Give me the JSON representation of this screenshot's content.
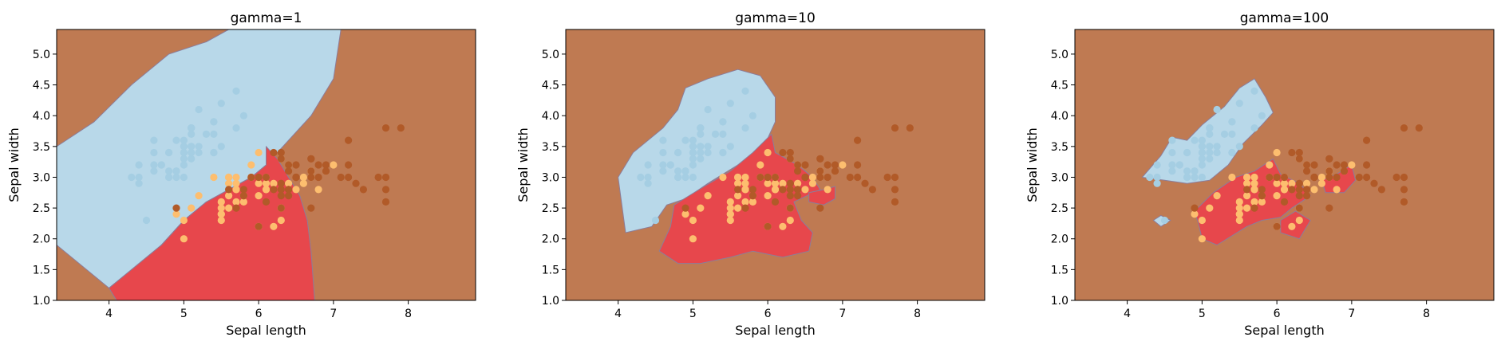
{
  "colors": {
    "background": "#bf7a52",
    "class0": "#b8d8e9",
    "class1": "#e7474c",
    "class0_point": "#a5cee3",
    "class1_point": "#fdbe6f",
    "class2_point": "#b15a28"
  },
  "chart_data": [
    {
      "type": "scatter",
      "title": "gamma=1",
      "xlabel": "Sepal length",
      "ylabel": "Sepal width",
      "xlim": [
        3.3,
        8.9
      ],
      "ylim": [
        1.0,
        5.4
      ],
      "xticks": [
        "4",
        "5",
        "6",
        "7",
        "8"
      ],
      "yticks": [
        "1.0",
        "1.5",
        "2.0",
        "2.5",
        "3.0",
        "3.5",
        "4.0",
        "4.5",
        "5.0"
      ],
      "grid": false,
      "regions": [
        {
          "class": 1,
          "points": [
            [
              4.0,
              1.2
            ],
            [
              4.3,
              1.5
            ],
            [
              4.7,
              1.9
            ],
            [
              5.0,
              2.3
            ],
            [
              5.3,
              2.6
            ],
            [
              5.6,
              2.8
            ],
            [
              5.9,
              3.0
            ],
            [
              6.1,
              3.2
            ],
            [
              6.4,
              3.6
            ],
            [
              6.7,
              4.0
            ],
            [
              7.0,
              4.6
            ],
            [
              7.1,
              5.4
            ],
            [
              5.6,
              5.4
            ],
            [
              5.3,
              5.2
            ],
            [
              4.8,
              5.0
            ],
            [
              4.3,
              4.5
            ],
            [
              3.8,
              3.9
            ],
            [
              3.3,
              3.5
            ],
            [
              3.3,
              1.9
            ],
            [
              3.7,
              1.5
            ]
          ]
        },
        {
          "class": 2,
          "points": [
            [
              4.0,
              1.2
            ],
            [
              4.3,
              1.5
            ],
            [
              4.7,
              1.9
            ],
            [
              5.0,
              2.3
            ],
            [
              5.3,
              2.6
            ],
            [
              5.6,
              2.8
            ],
            [
              5.9,
              3.0
            ],
            [
              6.1,
              3.2
            ],
            [
              6.1,
              3.5
            ],
            [
              6.25,
              3.3
            ],
            [
              6.4,
              3.0
            ],
            [
              6.55,
              2.7
            ],
            [
              6.65,
              2.3
            ],
            [
              6.7,
              1.8
            ],
            [
              6.75,
              1.0
            ],
            [
              4.1,
              1.0
            ]
          ]
        }
      ],
      "series": [
        {
          "class": 0,
          "x": [
            5.1,
            4.9,
            4.7,
            4.6,
            5.0,
            5.4,
            4.6,
            5.0,
            4.4,
            4.9,
            5.4,
            4.8,
            4.8,
            4.3,
            5.8,
            5.7,
            5.4,
            5.1,
            5.7,
            5.1,
            5.4,
            5.1,
            4.6,
            5.1,
            4.8,
            5.0,
            5.0,
            5.2,
            5.2,
            4.7,
            4.8,
            5.4,
            5.2,
            5.5,
            4.9,
            5.0,
            5.5,
            4.9,
            4.4,
            5.1,
            5.0,
            4.5,
            4.4,
            5.0,
            5.1,
            4.8,
            5.1,
            4.6,
            5.3,
            5.0
          ],
          "y": [
            3.5,
            3.0,
            3.2,
            3.1,
            3.6,
            3.9,
            3.4,
            3.4,
            2.9,
            3.1,
            3.7,
            3.4,
            3.0,
            3.0,
            4.0,
            4.4,
            3.9,
            3.5,
            3.8,
            3.8,
            3.4,
            3.7,
            3.6,
            3.3,
            3.4,
            3.0,
            3.4,
            3.5,
            3.4,
            3.2,
            3.1,
            3.4,
            4.1,
            4.2,
            3.1,
            3.2,
            3.5,
            3.6,
            3.0,
            3.4,
            3.5,
            2.3,
            3.2,
            3.5,
            3.8,
            3.0,
            3.8,
            3.2,
            3.7,
            3.3
          ]
        },
        {
          "class": 1,
          "x": [
            5.5,
            6.5,
            5.7,
            6.3,
            4.9,
            6.6,
            5.2,
            5.0,
            5.9,
            6.0,
            6.1,
            5.6,
            6.7,
            5.6,
            5.8,
            6.2,
            5.6,
            5.9,
            6.1,
            6.3,
            6.1,
            6.4,
            6.6,
            6.8,
            6.7,
            6.0,
            5.7,
            5.5,
            5.5,
            5.8,
            6.0,
            5.4,
            6.0,
            6.7,
            6.3,
            5.6,
            5.5,
            5.5,
            6.1,
            5.8,
            5.0,
            5.6,
            5.7,
            5.7,
            6.2,
            5.1,
            5.7,
            7.0,
            6.4,
            6.9
          ],
          "y": [
            2.3,
            2.8,
            2.8,
            3.3,
            2.4,
            2.9,
            2.7,
            2.0,
            3.0,
            2.2,
            2.9,
            2.9,
            3.1,
            3.0,
            2.7,
            2.2,
            2.5,
            3.2,
            2.8,
            2.5,
            2.8,
            2.9,
            3.0,
            2.8,
            3.0,
            2.9,
            2.6,
            2.4,
            2.4,
            2.7,
            2.7,
            3.0,
            3.4,
            3.1,
            2.3,
            3.0,
            2.5,
            2.6,
            3.0,
            2.6,
            2.3,
            2.7,
            3.0,
            2.9,
            2.9,
            2.5,
            2.8,
            3.2,
            3.2,
            3.1
          ]
        },
        {
          "class": 2,
          "x": [
            6.3,
            5.8,
            7.1,
            6.3,
            6.5,
            7.6,
            7.3,
            6.7,
            7.2,
            6.5,
            6.4,
            6.8,
            5.7,
            5.8,
            6.4,
            6.5,
            7.7,
            7.7,
            6.0,
            6.9,
            5.6,
            7.7,
            6.3,
            6.7,
            7.2,
            6.2,
            6.1,
            6.4,
            7.2,
            7.4,
            7.9,
            6.4,
            6.3,
            6.1,
            7.7,
            6.3,
            6.4,
            6.0,
            6.9,
            6.7,
            6.9,
            5.8,
            6.8,
            6.7,
            6.7,
            6.3,
            6.5,
            6.2,
            5.9,
            4.9
          ],
          "y": [
            3.3,
            2.7,
            3.0,
            2.9,
            3.0,
            3.0,
            2.9,
            2.5,
            3.6,
            3.2,
            2.7,
            3.0,
            2.5,
            2.8,
            3.2,
            3.0,
            3.8,
            2.6,
            2.2,
            3.2,
            2.8,
            2.8,
            2.7,
            3.3,
            3.2,
            2.8,
            3.0,
            2.8,
            3.0,
            2.8,
            3.8,
            2.8,
            2.8,
            2.6,
            3.0,
            3.4,
            3.1,
            3.0,
            3.1,
            3.1,
            3.1,
            2.7,
            3.2,
            3.3,
            3.0,
            2.5,
            3.0,
            3.4,
            3.0,
            2.5
          ]
        }
      ]
    },
    {
      "type": "scatter",
      "title": "gamma=10",
      "xlabel": "Sepal length",
      "ylabel": "Sepal width",
      "xlim": [
        3.3,
        8.9
      ],
      "ylim": [
        1.0,
        5.4
      ],
      "xticks": [
        "4",
        "5",
        "6",
        "7",
        "8"
      ],
      "yticks": [
        "1.0",
        "1.5",
        "2.0",
        "2.5",
        "3.0",
        "3.5",
        "4.0",
        "4.5",
        "5.0"
      ],
      "grid": false,
      "regions": [
        {
          "class": 1,
          "points": [
            [
              4.1,
              2.1
            ],
            [
              4.0,
              3.0
            ],
            [
              4.2,
              3.4
            ],
            [
              4.6,
              3.8
            ],
            [
              4.8,
              4.1
            ],
            [
              4.9,
              4.45
            ],
            [
              5.2,
              4.6
            ],
            [
              5.6,
              4.75
            ],
            [
              5.9,
              4.65
            ],
            [
              6.1,
              4.3
            ],
            [
              6.1,
              3.9
            ],
            [
              5.95,
              3.5
            ],
            [
              5.6,
              3.2
            ],
            [
              5.2,
              2.9
            ],
            [
              4.9,
              2.65
            ],
            [
              4.65,
              2.55
            ],
            [
              4.45,
              2.2
            ]
          ]
        },
        {
          "class": 2,
          "points": [
            [
              4.75,
              2.55
            ],
            [
              5.15,
              2.85
            ],
            [
              5.5,
              3.1
            ],
            [
              5.8,
              3.4
            ],
            [
              6.05,
              3.7
            ],
            [
              6.1,
              3.4
            ],
            [
              6.4,
              3.2
            ],
            [
              6.6,
              3.0
            ],
            [
              6.7,
              2.8
            ],
            [
              6.35,
              2.6
            ],
            [
              6.45,
              2.3
            ],
            [
              6.6,
              2.1
            ],
            [
              6.55,
              1.8
            ],
            [
              6.2,
              1.7
            ],
            [
              5.8,
              1.8
            ],
            [
              5.5,
              1.7
            ],
            [
              5.1,
              1.6
            ],
            [
              4.8,
              1.6
            ],
            [
              4.55,
              1.8
            ],
            [
              4.7,
              2.2
            ]
          ]
        },
        {
          "class": 2,
          "points": [
            [
              6.55,
              2.75
            ],
            [
              6.75,
              2.8
            ],
            [
              6.9,
              2.85
            ],
            [
              6.9,
              2.65
            ],
            [
              6.75,
              2.55
            ],
            [
              6.55,
              2.6
            ]
          ]
        }
      ],
      "series_ref": 0
    },
    {
      "type": "scatter",
      "title": "gamma=100",
      "xlabel": "Sepal length",
      "ylabel": "Sepal width",
      "xlim": [
        3.3,
        8.9
      ],
      "ylim": [
        1.0,
        5.4
      ],
      "xticks": [
        "4",
        "5",
        "6",
        "7",
        "8"
      ],
      "yticks": [
        "1.0",
        "1.5",
        "2.0",
        "2.5",
        "3.0",
        "3.5",
        "4.0",
        "4.5",
        "5.0"
      ],
      "grid": false,
      "regions": [
        {
          "class": 1,
          "points": [
            [
              4.2,
              3.0
            ],
            [
              4.45,
              3.35
            ],
            [
              4.6,
              3.65
            ],
            [
              4.8,
              3.6
            ],
            [
              5.0,
              3.85
            ],
            [
              5.3,
              4.15
            ],
            [
              5.5,
              4.45
            ],
            [
              5.7,
              4.6
            ],
            [
              5.85,
              4.3
            ],
            [
              5.95,
              4.05
            ],
            [
              5.8,
              3.85
            ],
            [
              5.55,
              3.55
            ],
            [
              5.35,
              3.2
            ],
            [
              5.1,
              2.95
            ],
            [
              4.8,
              2.9
            ],
            [
              4.5,
              2.95
            ]
          ]
        },
        {
          "class": 1,
          "points": [
            [
              4.35,
              2.3
            ],
            [
              4.45,
              2.38
            ],
            [
              4.58,
              2.3
            ],
            [
              4.45,
              2.2
            ]
          ]
        },
        {
          "class": 2,
          "points": [
            [
              4.9,
              2.45
            ],
            [
              5.15,
              2.75
            ],
            [
              5.45,
              3.0
            ],
            [
              5.7,
              3.1
            ],
            [
              5.95,
              3.3
            ],
            [
              6.05,
              3.05
            ],
            [
              6.3,
              2.9
            ],
            [
              6.45,
              2.7
            ],
            [
              6.2,
              2.5
            ],
            [
              6.05,
              2.35
            ],
            [
              5.8,
              2.3
            ],
            [
              5.6,
              2.2
            ],
            [
              5.4,
              2.05
            ],
            [
              5.2,
              1.9
            ],
            [
              5.0,
              2.0
            ],
            [
              4.95,
              2.25
            ]
          ]
        },
        {
          "class": 2,
          "points": [
            [
              6.6,
              2.95
            ],
            [
              6.8,
              3.05
            ],
            [
              7.0,
              3.2
            ],
            [
              7.05,
              2.95
            ],
            [
              6.9,
              2.75
            ],
            [
              6.65,
              2.75
            ]
          ]
        },
        {
          "class": 2,
          "points": [
            [
              6.05,
              2.3
            ],
            [
              6.25,
              2.45
            ],
            [
              6.45,
              2.3
            ],
            [
              6.3,
              2.0
            ],
            [
              6.05,
              2.1
            ]
          ]
        }
      ],
      "series_ref": 0
    }
  ]
}
